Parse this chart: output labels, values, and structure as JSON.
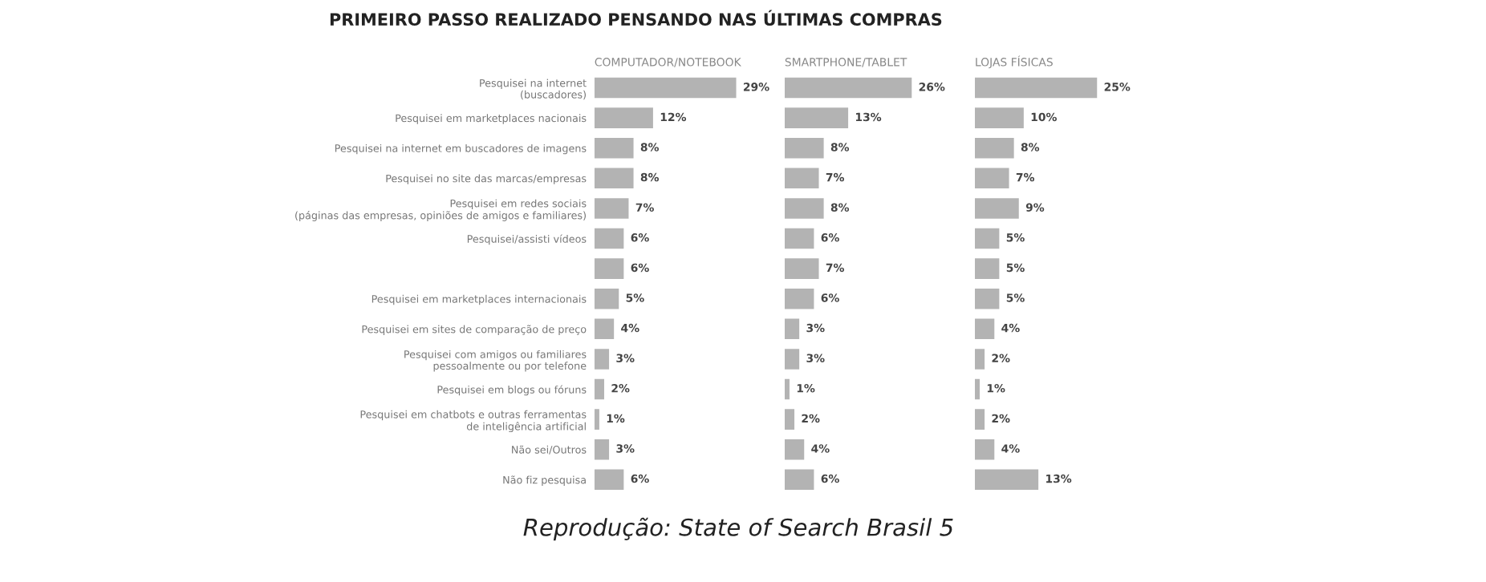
{
  "chart_data": [
    {
      "type": "bar",
      "orientation": "horizontal",
      "title": "COMPUTADOR/NOTEBOOK",
      "annotations": [
        "PRIMEIRO PASSO REALIZADO PENSANDO NAS ÚLTIMAS COMPRAS",
        "Reprodução: State of Search Brasil 5"
      ],
      "categories": [
        "Pesquisei na internet\n(buscadores)",
        "Pesquisei em marketplaces nacionais",
        "Pesquisei na internet em buscadores de imagens",
        "Pesquisei no site das marcas/empresas",
        "Pesquisei em redes sociais\n(páginas das empresas, opiniões de amigos e familiares)",
        "Pesquisei/assisti vídeos",
        null,
        "Pesquisei em marketplaces internacionais",
        "Pesquisei em sites de comparação de preço",
        "Pesquisei com amigos ou familiares\npessoalmente ou por telefone",
        "Pesquisei em blogs ou fóruns",
        "Pesquisei em chatbots e outras ferramentas\nde inteligência artificial",
        "Não sei/Outros",
        "Não fiz pesquisa"
      ],
      "values": [
        29,
        12,
        8,
        8,
        7,
        6,
        6,
        5,
        4,
        3,
        2,
        1,
        3,
        6
      ],
      "value_labels": [
        "29%",
        "12%",
        "8%",
        "8%",
        "7%",
        "6%",
        "6%",
        "5%",
        "4%",
        "3%",
        "2%",
        "1%",
        "3%",
        "6%"
      ],
      "color": "#b3b3b3",
      "tick_labels": "y"
    },
    {
      "type": "bar",
      "orientation": "horizontal",
      "title": "SMARTPHONE/TABLET",
      "values": [
        26,
        13,
        8,
        7,
        8,
        6,
        7,
        6,
        3,
        3,
        1,
        2,
        4,
        6
      ],
      "value_labels": [
        "26%",
        "13%",
        "8%",
        "7%",
        "8%",
        "6%",
        "7%",
        "6%",
        "3%",
        "3%",
        "1%",
        "2%",
        "4%",
        "6%"
      ],
      "color": "#b3b3b3",
      "tick_labels": false
    },
    {
      "type": "bar",
      "orientation": "horizontal",
      "title": "LOJAS FÍSICAS",
      "values": [
        25,
        10,
        8,
        7,
        9,
        5,
        5,
        5,
        4,
        2,
        1,
        2,
        4,
        13
      ],
      "value_labels": [
        "25%",
        "10%",
        "8%",
        "7%",
        "9%",
        "5%",
        "5%",
        "5%",
        "4%",
        "2%",
        "1%",
        "2%",
        "4%",
        "13%"
      ],
      "color": "#b3b3b3",
      "tick_labels": false
    }
  ]
}
